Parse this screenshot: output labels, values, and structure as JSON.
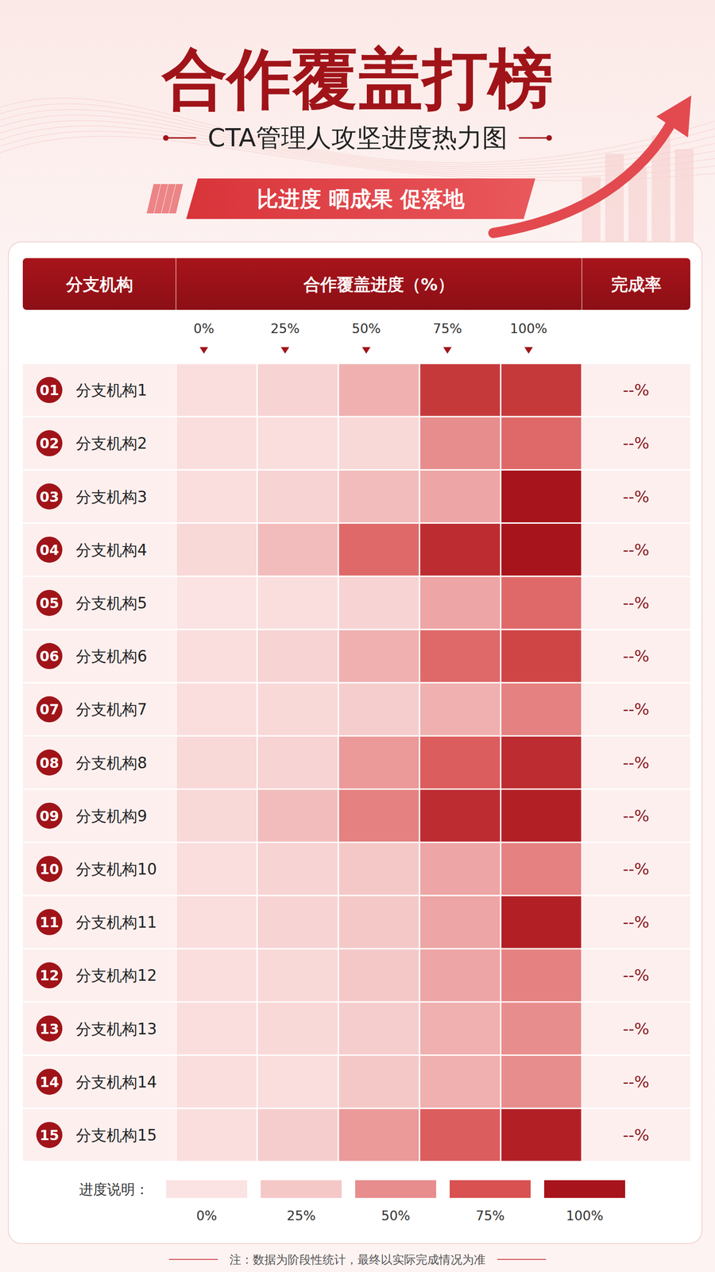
{
  "chart_data": {
    "type": "heatmap",
    "title": "合作覆盖打榜",
    "subtitle": "CTA管理人攻坚进度热力图",
    "tagline": "比进度 晒成果 促落地",
    "row_header": "分支机构",
    "column_header": "合作覆盖进度（%）",
    "rate_header": "完成率",
    "columns": [
      "0%",
      "25%",
      "50%",
      "75%",
      "100%"
    ],
    "row_numbers": [
      "01",
      "02",
      "03",
      "04",
      "05",
      "06",
      "07",
      "08",
      "09",
      "10",
      "11",
      "12",
      "13",
      "14",
      "15"
    ],
    "categories": [
      "分支机构1",
      "分支机构2",
      "分支机构3",
      "分支机构4",
      "分支机构5",
      "分支机构6",
      "分支机构7",
      "分支机构8",
      "分支机构9",
      "分支机构10",
      "分支机构11",
      "分支机构12",
      "分支机构13",
      "分支机构14",
      "分支机构15"
    ],
    "cells": [
      [
        5,
        15,
        35,
        85,
        85
      ],
      [
        5,
        5,
        10,
        50,
        65
      ],
      [
        5,
        15,
        30,
        40,
        100
      ],
      [
        10,
        30,
        65,
        90,
        100
      ],
      [
        0,
        5,
        15,
        40,
        65
      ],
      [
        5,
        15,
        35,
        65,
        80
      ],
      [
        5,
        10,
        20,
        35,
        55
      ],
      [
        10,
        15,
        45,
        70,
        90
      ],
      [
        10,
        30,
        55,
        90,
        95
      ],
      [
        5,
        15,
        25,
        40,
        55
      ],
      [
        5,
        15,
        25,
        40,
        95
      ],
      [
        5,
        10,
        25,
        40,
        55
      ],
      [
        5,
        10,
        20,
        35,
        50
      ],
      [
        5,
        5,
        25,
        35,
        50
      ],
      [
        5,
        20,
        45,
        70,
        95
      ]
    ],
    "completion_labels": [
      "--%",
      "--%",
      "--%",
      "--%",
      "--%",
      "--%",
      "--%",
      "--%",
      "--%",
      "--%",
      "--%",
      "--%",
      "--%",
      "--%",
      "--%"
    ],
    "colorbar_title": "进度说明：",
    "colorbar_range": [
      0,
      100
    ],
    "colorbar_ticks": [
      {
        "value": 0,
        "label": "0%"
      },
      {
        "value": 25,
        "label": "25%"
      },
      {
        "value": 50,
        "label": "50%"
      },
      {
        "value": 75,
        "label": "75%"
      },
      {
        "value": 100,
        "label": "100%"
      }
    ],
    "note": "注：数据为阶段性统计，最终以实际完成情况为准"
  }
}
